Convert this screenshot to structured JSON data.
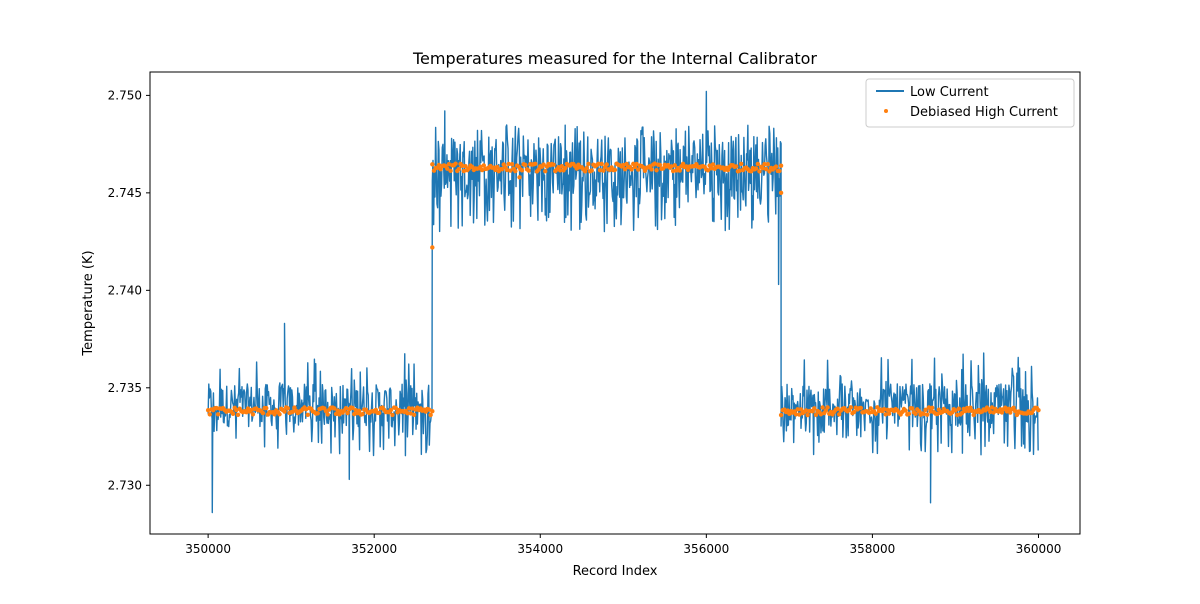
{
  "chart_data": {
    "type": "line",
    "title": "Temperatures measured for the Internal Calibrator",
    "xlabel": "Record Index",
    "ylabel": "Temperature (K)",
    "xlim": [
      349300,
      360500
    ],
    "ylim": [
      2.7275,
      2.7512
    ],
    "xticks": [
      350000,
      352000,
      354000,
      356000,
      358000,
      360000
    ],
    "xtick_labels": [
      "350000",
      "352000",
      "354000",
      "356000",
      "358000",
      "360000"
    ],
    "yticks": [
      2.73,
      2.735,
      2.74,
      2.745,
      2.75
    ],
    "ytick_labels": [
      "2.730",
      "2.735",
      "2.740",
      "2.745",
      "2.750"
    ],
    "grid": false,
    "legend_position": "top-right",
    "colors": {
      "low_current": "#1f77b4",
      "debiased_high_current": "#ff7f0e"
    },
    "series": [
      {
        "name": "Low Current",
        "kind": "line",
        "segments": [
          {
            "x_start": 350000,
            "x_end": 352700,
            "baseline": 2.7338,
            "band": [
              2.733,
              2.7352
            ],
            "spike_low": 2.7315,
            "spike_high": 2.7368
          },
          {
            "x_start": 352700,
            "x_end": 356900,
            "baseline": 2.7463,
            "band": [
              2.7447,
              2.748
            ],
            "spike_low": 2.743,
            "spike_high": 2.7485
          },
          {
            "x_start": 356900,
            "x_end": 360000,
            "baseline": 2.7338,
            "band": [
              2.733,
              2.7352
            ],
            "spike_low": 2.7315,
            "spike_high": 2.7368
          }
        ],
        "extremes": [
          {
            "x": 350050,
            "y": 2.7286
          },
          {
            "x": 350920,
            "y": 2.7383
          },
          {
            "x": 351700,
            "y": 2.7303
          },
          {
            "x": 352850,
            "y": 2.7492
          },
          {
            "x": 356000,
            "y": 2.7502
          },
          {
            "x": 356870,
            "y": 2.7403
          },
          {
            "x": 358700,
            "y": 2.7291
          }
        ]
      },
      {
        "name": "Debiased High Current",
        "kind": "scatter",
        "segments": [
          {
            "x_start": 350000,
            "x_end": 352700,
            "mean": 2.7338,
            "spread": 0.0002
          },
          {
            "x_start": 352700,
            "x_end": 356900,
            "mean": 2.7463,
            "spread": 0.0002
          },
          {
            "x_start": 356900,
            "x_end": 360000,
            "mean": 2.7338,
            "spread": 0.0002
          }
        ],
        "outliers": [
          {
            "x": 352700,
            "y": 2.7422
          },
          {
            "x": 356900,
            "y": 2.745
          },
          {
            "x": 353750,
            "y": 2.7458
          }
        ]
      }
    ]
  }
}
